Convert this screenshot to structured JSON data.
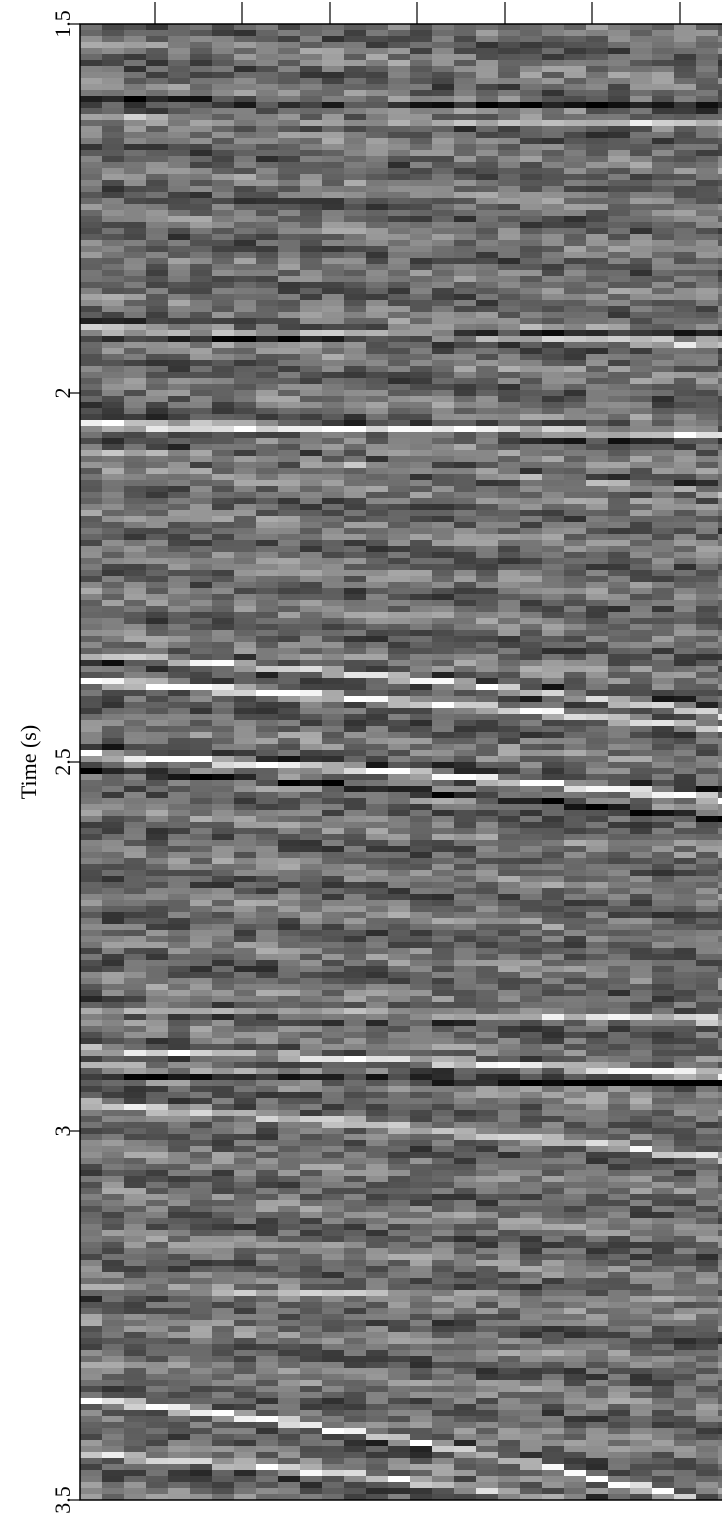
{
  "chart_data": {
    "type": "seismic",
    "y_label": "Time (s)",
    "ylim": [
      3.5,
      1.5
    ],
    "yticks": [
      1.5,
      2,
      2.5,
      3,
      3.5
    ]
  }
}
